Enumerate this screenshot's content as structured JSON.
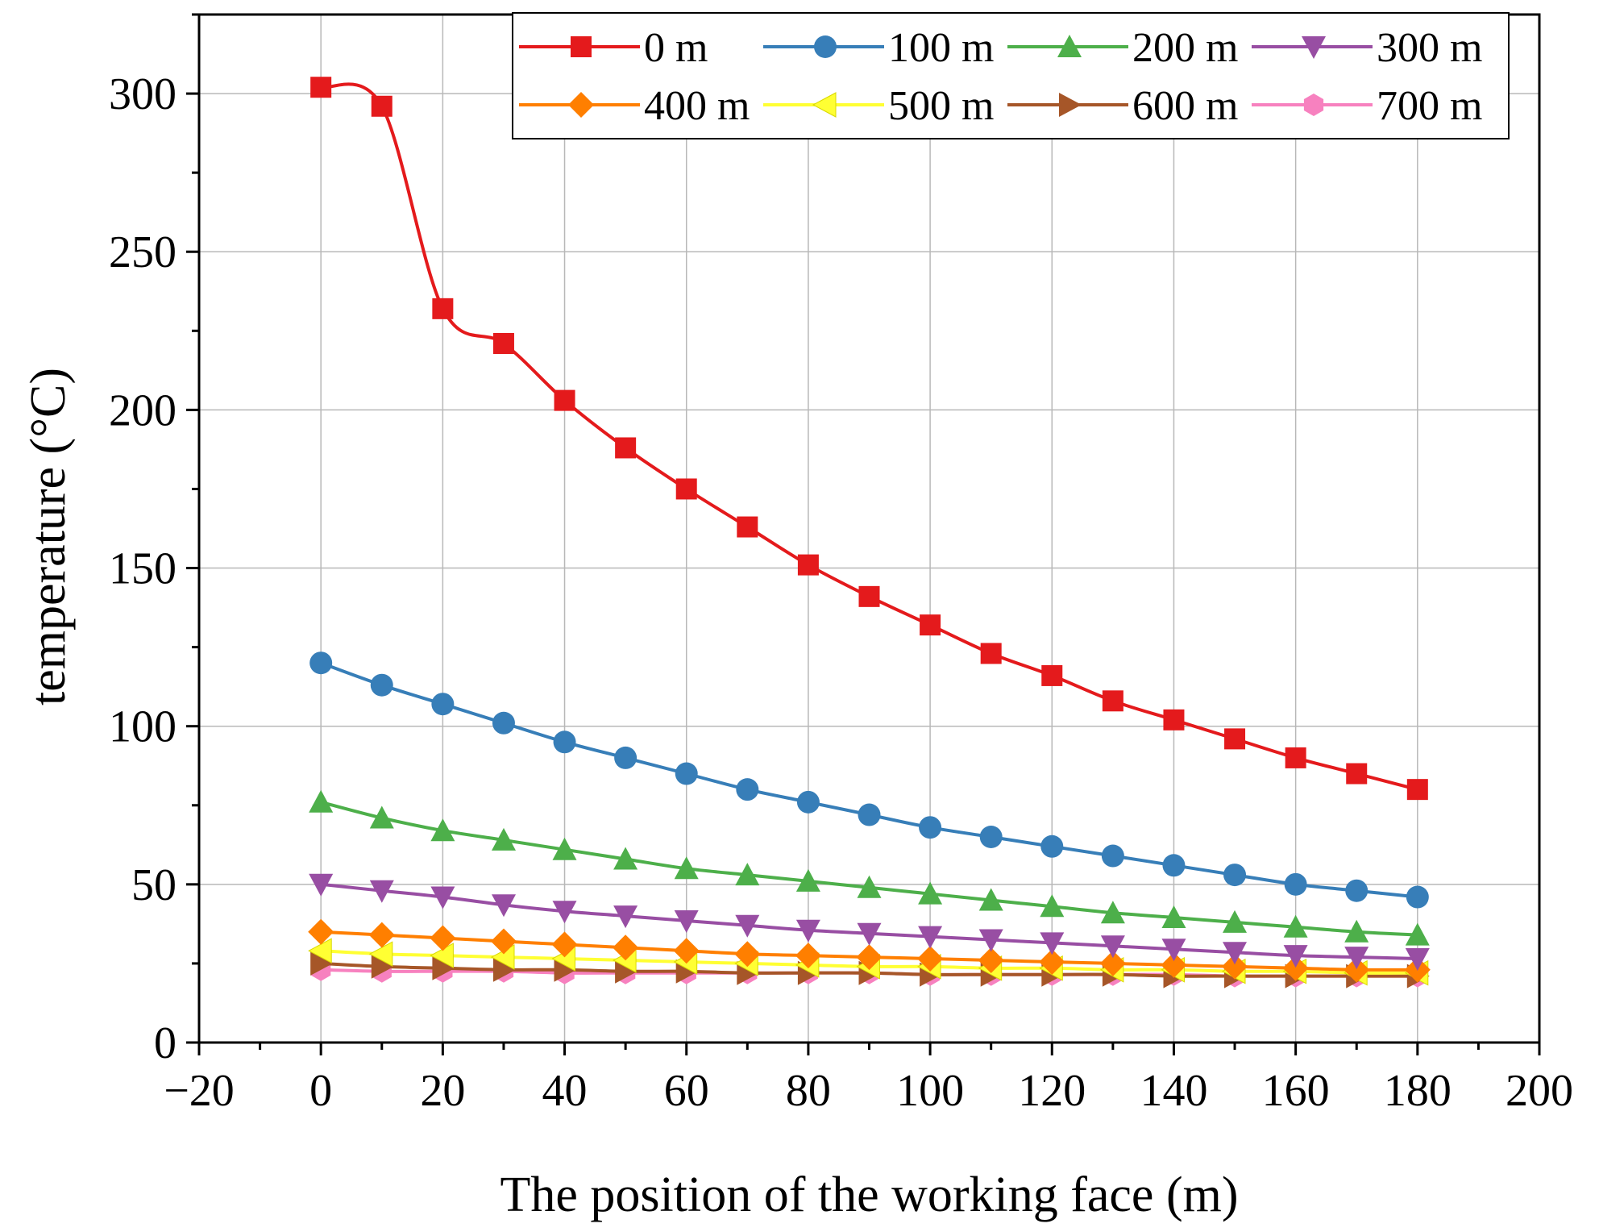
{
  "chart_data": {
    "type": "line",
    "xlabel": "The position of the working face (m)",
    "ylabel": "temperature (°C)",
    "xlim": [
      -20,
      200
    ],
    "ylim": [
      0,
      325
    ],
    "xticks": [
      -20,
      0,
      20,
      40,
      60,
      80,
      100,
      120,
      140,
      160,
      180,
      200
    ],
    "yticks": [
      0,
      50,
      100,
      150,
      200,
      250,
      300
    ],
    "xtick_labels": [
      "−20",
      "0",
      "20",
      "40",
      "60",
      "80",
      "100",
      "120",
      "140",
      "160",
      "180",
      "200"
    ],
    "ytick_labels": [
      "0",
      "50",
      "100",
      "150",
      "200",
      "250",
      "300"
    ],
    "grid": true,
    "legend_position": "top-right",
    "x": [
      0,
      10,
      20,
      30,
      40,
      50,
      60,
      70,
      80,
      90,
      100,
      110,
      120,
      130,
      140,
      150,
      160,
      170,
      180
    ],
    "series": [
      {
        "name": "0 m",
        "color": "#e41a1c",
        "marker": "square",
        "values": [
          302,
          296,
          232,
          221,
          203,
          188,
          175,
          163,
          151,
          141,
          132,
          123,
          116,
          108,
          102,
          96,
          90,
          85,
          80
        ]
      },
      {
        "name": "100 m",
        "color": "#377eb8",
        "marker": "circle",
        "values": [
          120,
          113,
          107,
          101,
          95,
          90,
          85,
          80,
          76,
          72,
          68,
          65,
          62,
          59,
          56,
          53,
          50,
          48,
          46
        ]
      },
      {
        "name": "200 m",
        "color": "#4daf4a",
        "marker": "triangle-up",
        "values": [
          76,
          71,
          67,
          64,
          61,
          58,
          55,
          53,
          51,
          49,
          47,
          45,
          43,
          41,
          39.5,
          38,
          36.5,
          35,
          34
        ]
      },
      {
        "name": "300 m",
        "color": "#984ea3",
        "marker": "triangle-down",
        "values": [
          50,
          48,
          46,
          43.5,
          41.5,
          40,
          38.5,
          37,
          35.5,
          34.5,
          33.5,
          32.5,
          31.5,
          30.5,
          29.5,
          28.5,
          27.5,
          27,
          26.5
        ]
      },
      {
        "name": "400 m",
        "color": "#ff7f00",
        "marker": "diamond",
        "values": [
          35,
          34,
          33,
          32,
          31,
          30,
          29,
          28,
          27.5,
          27,
          26.5,
          26,
          25.5,
          25,
          24.5,
          24,
          23.5,
          23,
          23
        ]
      },
      {
        "name": "500 m",
        "color": "#ffff33",
        "marker": "triangle-left",
        "values": [
          29,
          28,
          27.5,
          27,
          26.5,
          26,
          25.5,
          25,
          24.5,
          24,
          24,
          23.5,
          23.5,
          23,
          23,
          22.5,
          22.5,
          22,
          22
        ]
      },
      {
        "name": "600 m",
        "color": "#a65628",
        "marker": "triangle-right",
        "values": [
          25,
          24,
          23.5,
          23,
          23,
          22.5,
          22.5,
          22,
          22,
          22,
          21.5,
          21.5,
          21.5,
          21.5,
          21,
          21,
          21,
          21,
          21
        ]
      },
      {
        "name": "700 m",
        "color": "#f781bf",
        "marker": "hexagon",
        "values": [
          23,
          22.5,
          22.5,
          22.5,
          22,
          22,
          22,
          22,
          22,
          22,
          21.5,
          21.5,
          21.5,
          21.5,
          21.5,
          21,
          21,
          21,
          21
        ]
      }
    ]
  }
}
